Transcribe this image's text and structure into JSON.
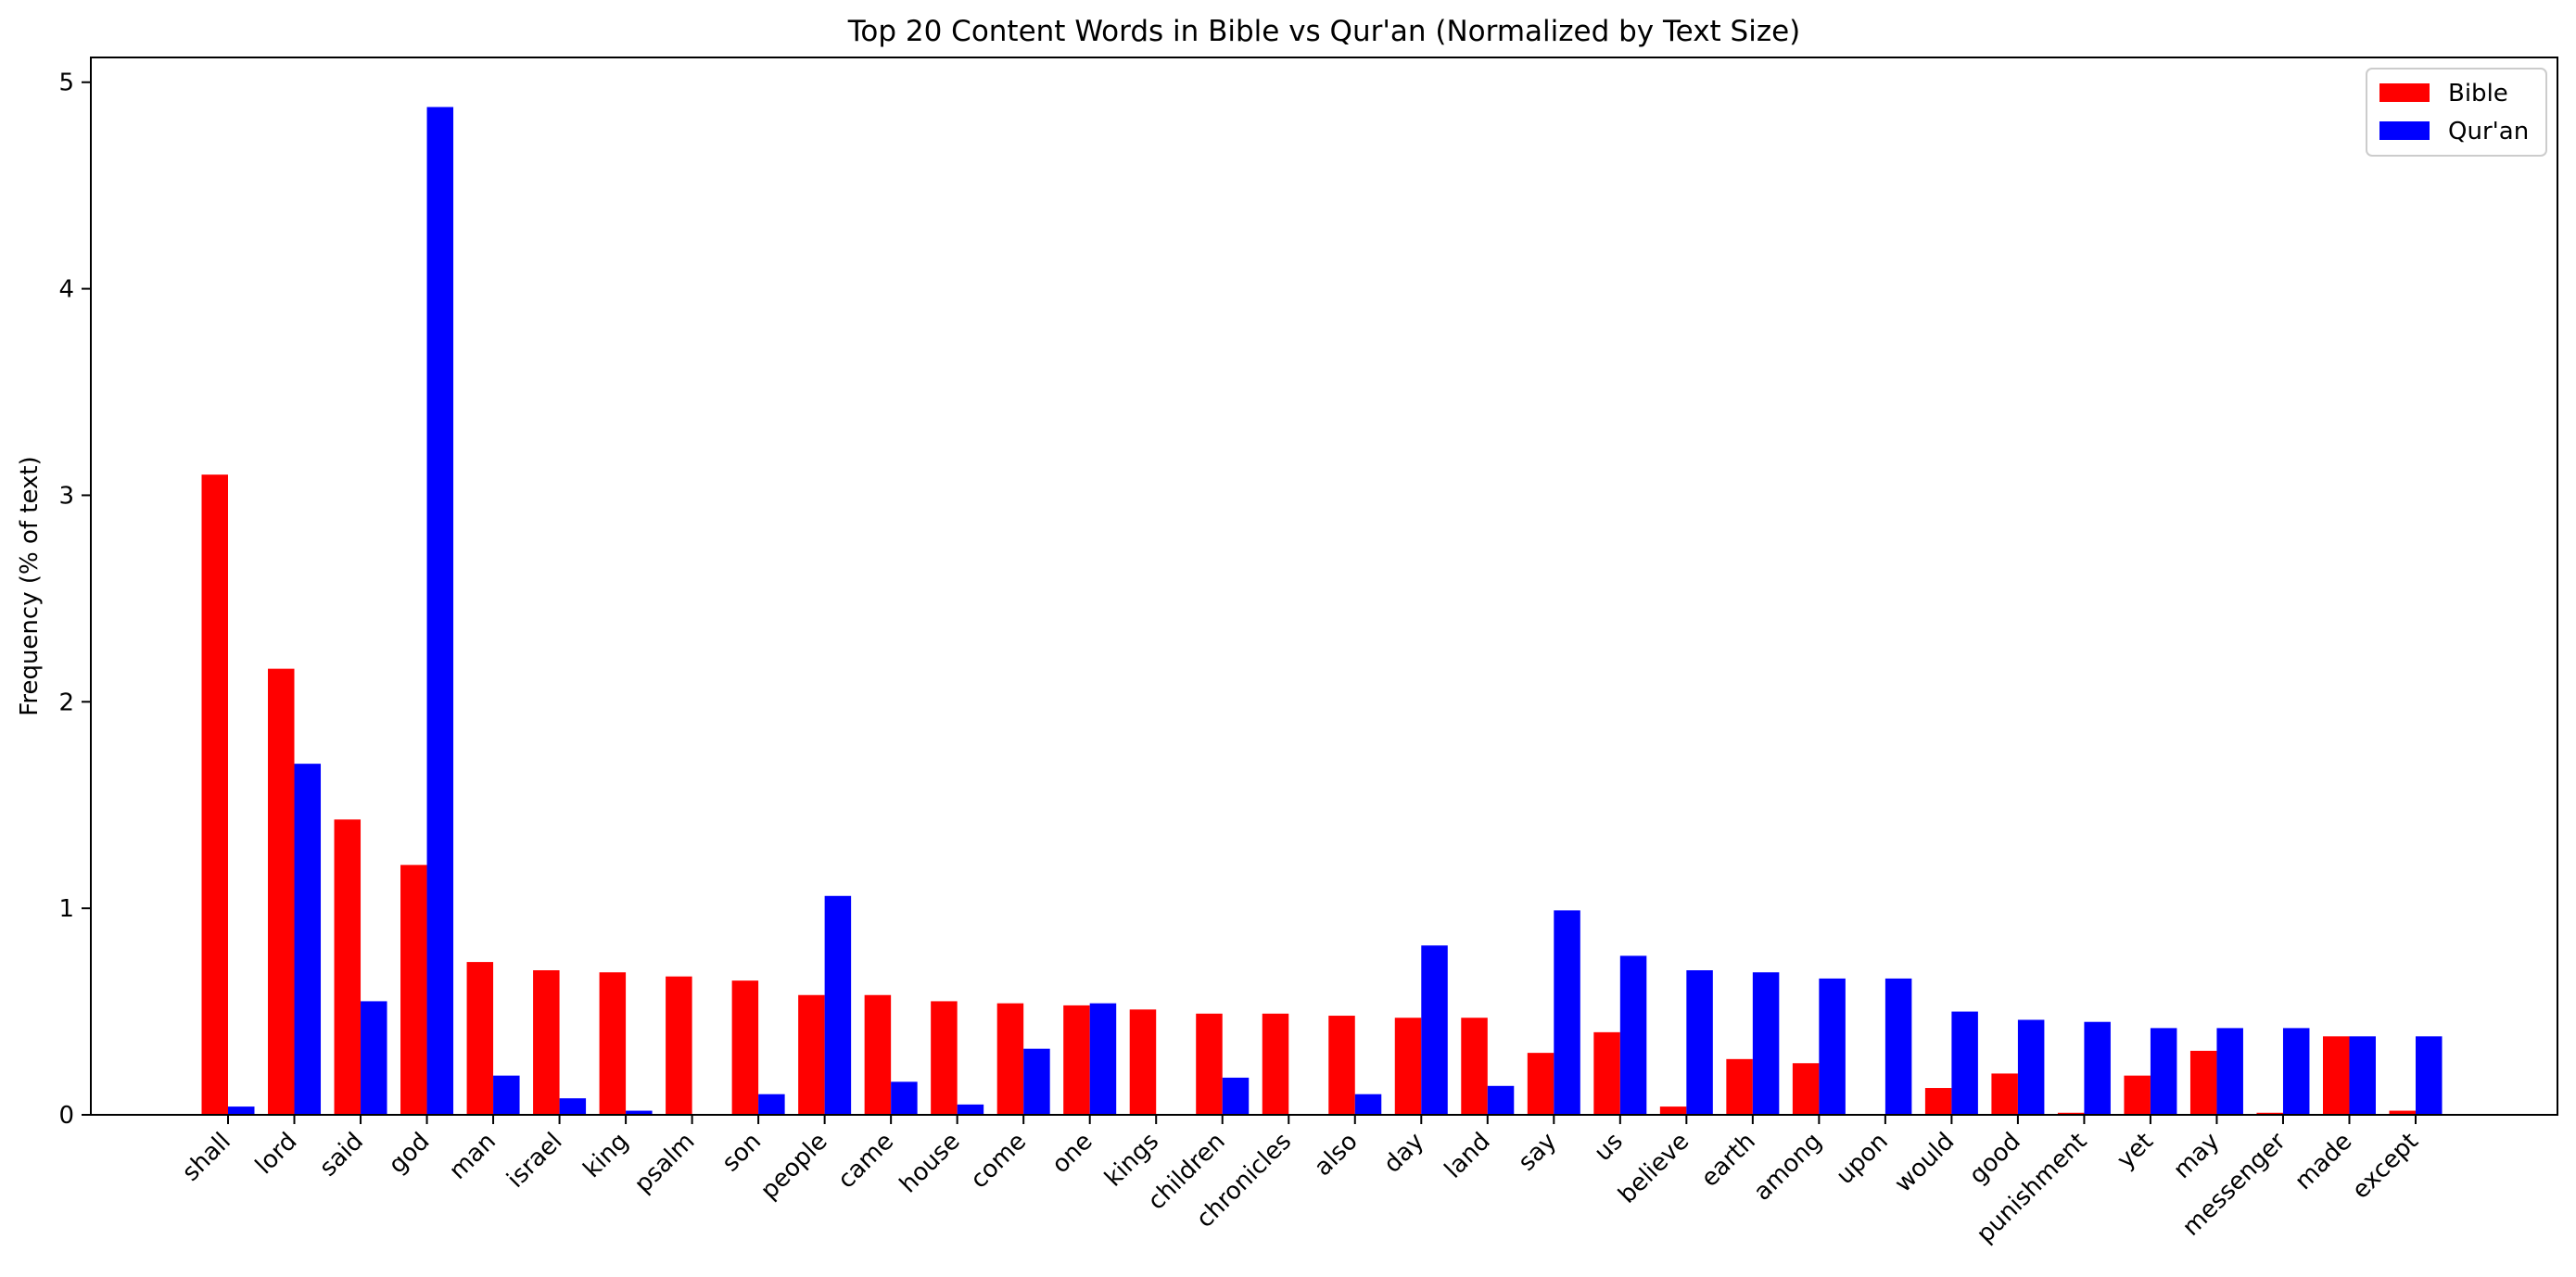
{
  "chart_data": {
    "type": "bar",
    "title": "Top 20 Content Words in Bible vs Qur'an (Normalized by Text Size)",
    "xlabel": "",
    "ylabel": "Frequency (% of text)",
    "ylim": [
      0,
      5.12
    ],
    "yticks": [
      0,
      1,
      2,
      3,
      4,
      5
    ],
    "grid": false,
    "legend_position": "top-right",
    "categories": [
      "shall",
      "lord",
      "said",
      "god",
      "man",
      "israel",
      "king",
      "psalm",
      "son",
      "people",
      "came",
      "house",
      "come",
      "one",
      "kings",
      "children",
      "chronicles",
      "also",
      "day",
      "land",
      "say",
      "us",
      "believe",
      "earth",
      "among",
      "upon",
      "would",
      "good",
      "punishment",
      "yet",
      "may",
      "messenger",
      "made",
      "except"
    ],
    "series": [
      {
        "name": "Bible",
        "color": "#ff0000",
        "values": [
          3.1,
          2.16,
          1.43,
          1.21,
          0.74,
          0.7,
          0.69,
          0.67,
          0.65,
          0.58,
          0.58,
          0.55,
          0.54,
          0.53,
          0.51,
          0.49,
          0.49,
          0.48,
          0.47,
          0.47,
          0.3,
          0.4,
          0.04,
          0.27,
          0.25,
          0.0,
          0.13,
          0.2,
          0.01,
          0.19,
          0.31,
          0.01,
          0.38,
          0.02
        ]
      },
      {
        "name": "Qur'an",
        "color": "#0000ff",
        "values": [
          0.04,
          1.7,
          0.55,
          4.88,
          0.19,
          0.08,
          0.02,
          0.0,
          0.1,
          1.06,
          0.16,
          0.05,
          0.32,
          0.54,
          0.0,
          0.18,
          0.0,
          0.1,
          0.82,
          0.14,
          0.99,
          0.77,
          0.7,
          0.69,
          0.66,
          0.66,
          0.5,
          0.46,
          0.45,
          0.42,
          0.42,
          0.42,
          0.38,
          0.38
        ]
      }
    ]
  }
}
